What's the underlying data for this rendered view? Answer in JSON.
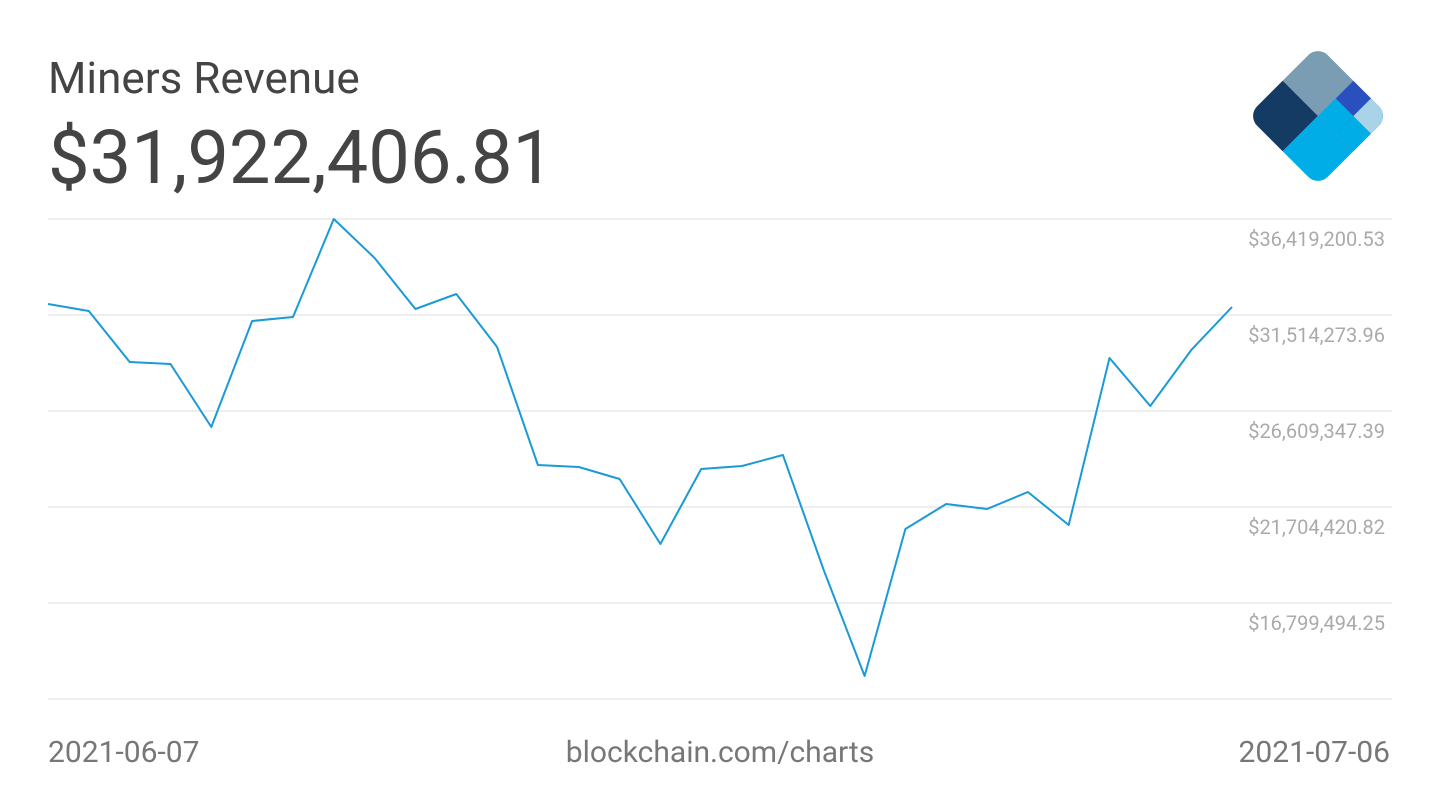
{
  "chart_data": {
    "type": "line",
    "title": "Miners Revenue",
    "subtitle": "$31,922,406.81",
    "source": "blockchain.com/charts",
    "xticks": [
      "2021-06-07",
      "2021-07-06"
    ],
    "series": [
      {
        "color": "#1a9ad6",
        "values": [
          32076300,
          31718640,
          29112900,
          29010700,
          25791860,
          31207710,
          31412080,
          36419200,
          34426570,
          31820830,
          32587230,
          29879300,
          23850320,
          23748140,
          23135020,
          19814000,
          23645950,
          23799230,
          24361250,
          18485560,
          13069700,
          20580370,
          21857700,
          21602230,
          22470810,
          20784740,
          29317270,
          26864810,
          29721020,
          31922406.81
        ]
      }
    ],
    "ylim": [
      11894567.68,
      36419200.53
    ],
    "yticks": [
      {
        "value": 16799494.25,
        "label": "$16,799,494.25"
      },
      {
        "value": 21704420.82,
        "label": "$21,704,420.82"
      },
      {
        "value": 26609347.39,
        "label": "$26,609,347.39"
      },
      {
        "value": 31514273.96,
        "label": "$31,514,273.96"
      },
      {
        "value": 36419200.53,
        "label": "$36,419,200.53"
      }
    ],
    "grid": true
  }
}
